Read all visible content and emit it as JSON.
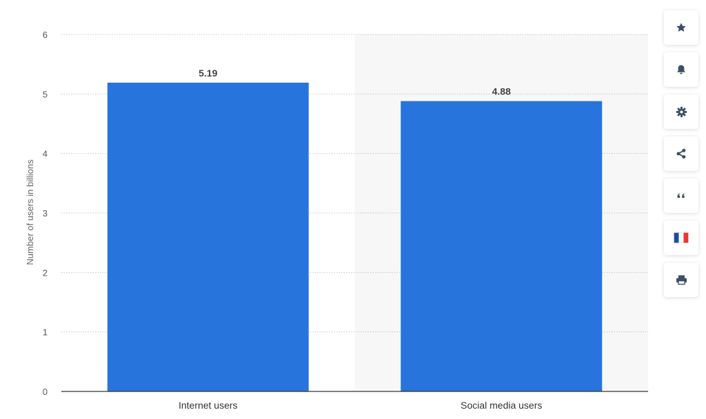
{
  "chart_data": {
    "type": "bar",
    "categories": [
      "Internet users",
      "Social media users"
    ],
    "values": [
      5.19,
      4.88
    ],
    "value_labels": [
      "5.19",
      "4.88"
    ],
    "title": "",
    "xlabel": "",
    "ylabel": "Number of users in billions",
    "ylim": [
      0,
      6
    ],
    "yticks": [
      "0",
      "1",
      "2",
      "3",
      "4",
      "5",
      "6"
    ],
    "grid": true,
    "bar_color": "#2874DD",
    "highlight_band_color": "#F7F7F7"
  },
  "toolbar": {
    "items": [
      {
        "name": "favorite",
        "icon": "star-icon"
      },
      {
        "name": "notification",
        "icon": "bell-icon"
      },
      {
        "name": "settings",
        "icon": "gear-icon"
      },
      {
        "name": "share",
        "icon": "share-icon"
      },
      {
        "name": "cite",
        "icon": "quote-icon"
      },
      {
        "name": "language",
        "icon": "french-flag-icon"
      },
      {
        "name": "print",
        "icon": "printer-icon"
      }
    ],
    "icon_color": "#3D4F66"
  }
}
